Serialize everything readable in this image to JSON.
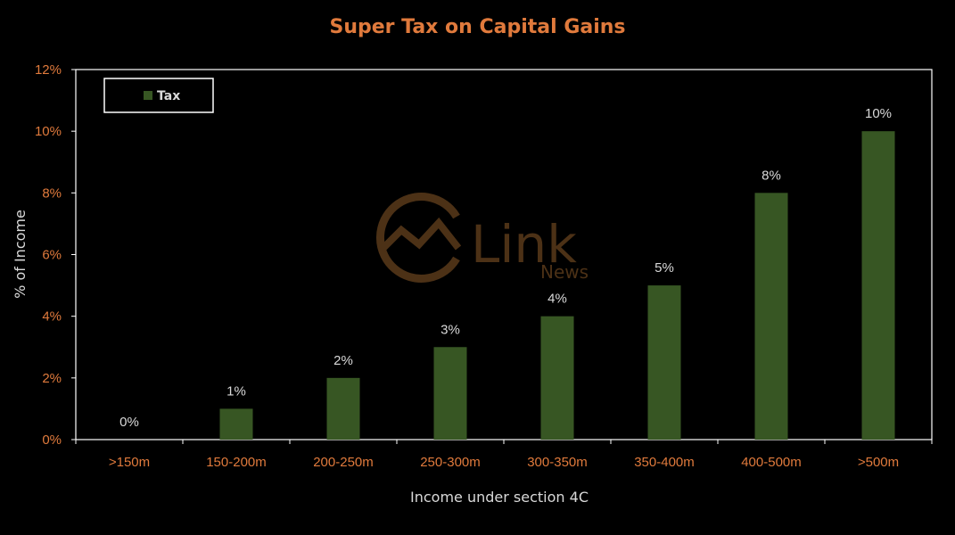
{
  "colors": {
    "background": "#000000",
    "title": "#E07A3C",
    "tick": "#E07A3C",
    "bar": "#375623",
    "axis_text": "#D9D9D9",
    "axis_line": "#FFFFFF",
    "watermark": "#5A3A1A"
  },
  "watermark": {
    "brand": "Link",
    "sub": "News",
    "icon": "chart-circle-logo-icon"
  },
  "chart_data": {
    "type": "bar",
    "title": "Super Tax on Capital Gains",
    "xlabel": "Income under section 4C",
    "ylabel": "% of Income",
    "categories": [
      ">150m",
      "150-200m",
      "200-250m",
      "250-300m",
      "300-350m",
      "350-400m",
      "400-500m",
      ">500m"
    ],
    "series": [
      {
        "name": "Tax",
        "values": [
          0,
          1,
          2,
          3,
          4,
          5,
          8,
          10
        ]
      }
    ],
    "data_labels": [
      "0%",
      "1%",
      "2%",
      "3%",
      "4%",
      "5%",
      "8%",
      "10%"
    ],
    "ylim": [
      0,
      12
    ],
    "yticks": [
      "0%",
      "2%",
      "4%",
      "6%",
      "8%",
      "10%",
      "12%"
    ],
    "grid": false,
    "legend": "top-left"
  }
}
